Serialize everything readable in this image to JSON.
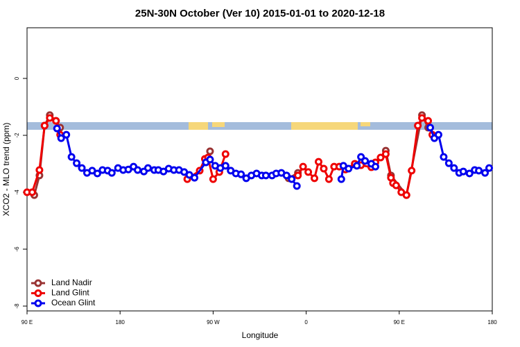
{
  "chart_data": {
    "type": "line",
    "title": "25N-30N October (Ver 10)   2015-01-01 to 2020-12-18",
    "x_label": "Longitude",
    "y_label": "XCO2 - MLO trend (ppm)",
    "xlim": [
      90,
      540
    ],
    "xticks": [
      {
        "value": 90,
        "label": "90 E"
      },
      {
        "value": 180,
        "label": "180"
      },
      {
        "value": 270,
        "label": "90 W"
      },
      {
        "value": 360,
        "label": "0"
      },
      {
        "value": 450,
        "label": "90 E"
      },
      {
        "value": 540,
        "label": "180"
      }
    ],
    "ylim": [
      -8.17,
      1.78
    ],
    "yticks": [
      0,
      -2,
      -4,
      -6,
      -8
    ],
    "legend": "bottom-left",
    "series": [
      {
        "name": "Land Nadir",
        "color": "#993333",
        "x": [
          97,
          102,
          107,
          112,
          118,
          122,
          null,
          267,
          null,
          343,
          352,
          null,
          437,
          442,
          457,
          472,
          478
        ],
        "values": [
          -4.1,
          -3.41,
          -1.66,
          -1.29,
          -1.49,
          -1.73,
          null,
          -2.56,
          null,
          -3.51,
          -3.32,
          null,
          -2.54,
          -3.41,
          -4.1,
          -1.29,
          -1.73
        ]
      },
      {
        "name": "Land Glint",
        "color": "#ee0000",
        "x": [
          90,
          95,
          102,
          107,
          112,
          118,
          122,
          null,
          245,
          257,
          262,
          265,
          270,
          276,
          282,
          null,
          352,
          357,
          362,
          368,
          372,
          377,
          382,
          387,
          392,
          398,
          407,
          413,
          423,
          427,
          432,
          437,
          442,
          444,
          447,
          452,
          457,
          462,
          468,
          472,
          478,
          482
        ],
        "values": [
          -4.0,
          -4.0,
          -3.22,
          -1.66,
          -1.39,
          -1.49,
          -1.98,
          null,
          -3.54,
          -3.24,
          -2.83,
          -2.78,
          -3.54,
          -3.29,
          -2.66,
          null,
          -3.41,
          -3.1,
          -3.29,
          -3.51,
          -2.93,
          -3.17,
          -3.54,
          -3.1,
          -3.1,
          -3.2,
          -3.0,
          -3.05,
          -3.12,
          -2.95,
          -2.78,
          -2.66,
          -3.49,
          -3.68,
          -3.76,
          -4.0,
          -4.1,
          -3.24,
          -1.66,
          -1.39,
          -1.49,
          -1.98
        ]
      },
      {
        "name": "Ocean Glint",
        "color": "#0000ee",
        "x": [
          119,
          123,
          128,
          133,
          138,
          143,
          148,
          153,
          158,
          163,
          168,
          172,
          178,
          183,
          188,
          193,
          197,
          203,
          207,
          213,
          217,
          222,
          227,
          232,
          237,
          242,
          247,
          252,
          263,
          267,
          272,
          277,
          282,
          287,
          292,
          297,
          302,
          307,
          312,
          317,
          321,
          327,
          331,
          336,
          341,
          346,
          351,
          null,
          394,
          396,
          401,
          409,
          413,
          417,
          423,
          427,
          null,
          480,
          484,
          488,
          493,
          498,
          503,
          508,
          512,
          518,
          523,
          527,
          533,
          537
        ],
        "values": [
          -1.76,
          -2.1,
          -1.98,
          -2.76,
          -2.98,
          -3.15,
          -3.32,
          -3.24,
          -3.34,
          -3.22,
          -3.24,
          -3.32,
          -3.15,
          -3.22,
          -3.2,
          -3.1,
          -3.22,
          -3.27,
          -3.15,
          -3.22,
          -3.22,
          -3.27,
          -3.17,
          -3.22,
          -3.22,
          -3.29,
          -3.39,
          -3.49,
          -2.95,
          -2.85,
          -3.07,
          -3.15,
          -3.07,
          -3.24,
          -3.34,
          -3.37,
          -3.51,
          -3.41,
          -3.34,
          -3.41,
          -3.41,
          -3.41,
          -3.34,
          -3.32,
          -3.41,
          -3.54,
          -3.78,
          null,
          -3.54,
          -3.07,
          -3.17,
          -3.07,
          -2.76,
          -2.9,
          -3.0,
          -3.1,
          null,
          -1.73,
          -2.1,
          -1.98,
          -2.76,
          -2.98,
          -3.15,
          -3.32,
          -3.27,
          -3.34,
          -3.22,
          -3.24,
          -3.32,
          -3.15
        ]
      }
    ]
  }
}
